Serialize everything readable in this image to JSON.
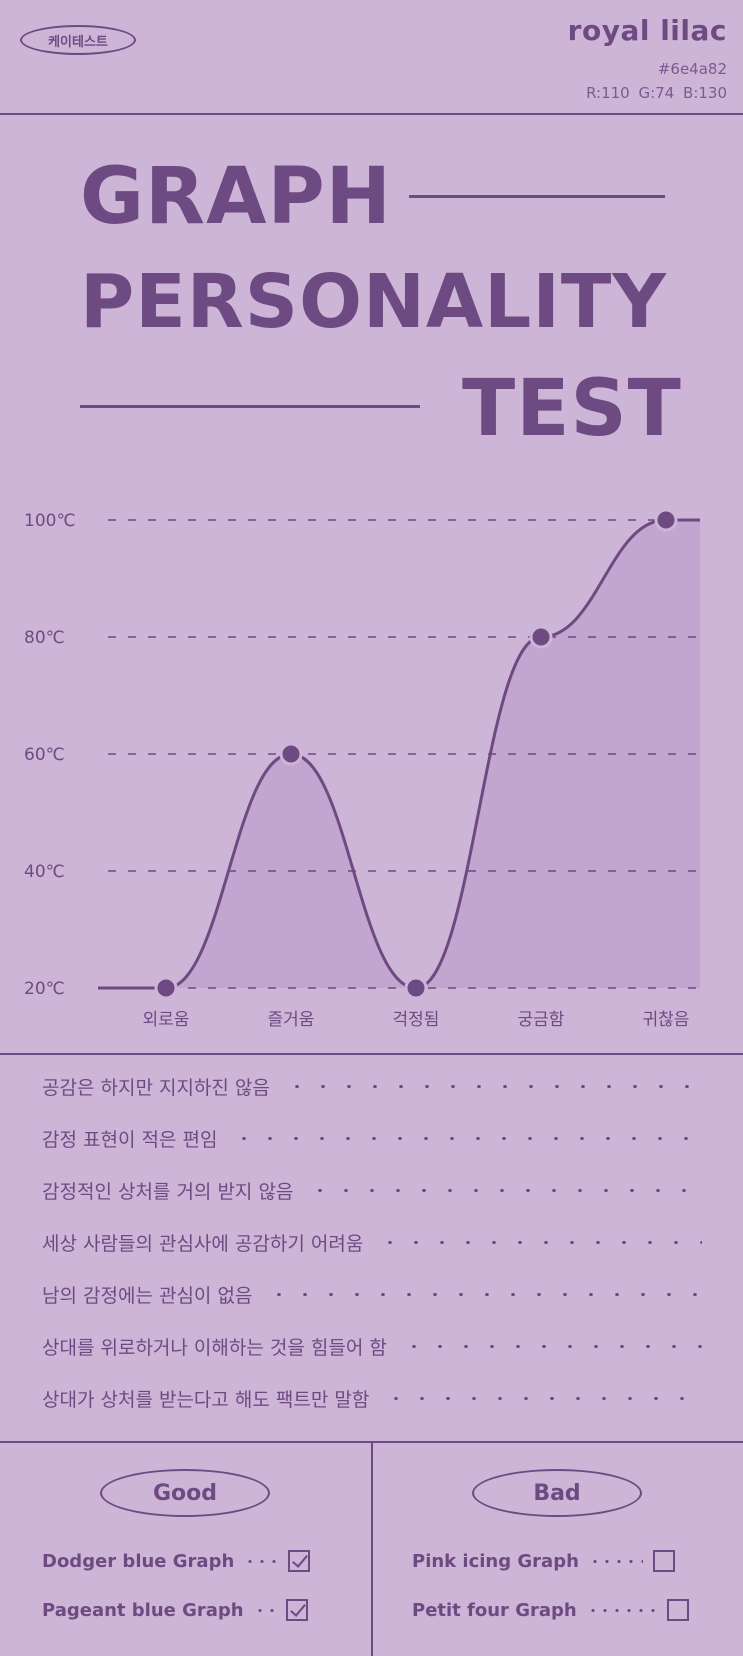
{
  "header": {
    "brand": "케이테스트",
    "color_name": "royal lilac",
    "color_hex": "#6e4a82",
    "color_rgb": "R:110  G:74  B:130"
  },
  "title": {
    "line1": "GRAPH",
    "line2": "PERSONALITY",
    "line3": "TEST"
  },
  "colors": {
    "primary": "#6e4a82",
    "background": "#cdb5d7",
    "fill": "#c3a6cf"
  },
  "chart_data": {
    "type": "area",
    "categories": [
      "외로움",
      "즐거움",
      "걱정됨",
      "궁금함",
      "귀찮음"
    ],
    "values": [
      20,
      60,
      20,
      80,
      100
    ],
    "y_ticks": [
      "20℃",
      "40℃",
      "60℃",
      "80℃",
      "100℃"
    ],
    "ylim": [
      20,
      100
    ],
    "grid": true,
    "curve": "smooth"
  },
  "traits": [
    "공감은 하지만 지지하진 않음",
    "감정 표현이 적은 편임",
    "감정적인 상처를 거의 받지 않음",
    "세상 사람들의 관심사에 공감하기 어려움",
    "남의 감정에는 관심이 없음",
    "상대를 위로하거나 이해하는 것을 힘들어 함",
    "상대가 상처를 받는다고 해도 팩트만 말함"
  ],
  "good": {
    "label": "Good",
    "items": [
      {
        "name": "Dodger blue Graph",
        "checked": true
      },
      {
        "name": "Pageant blue Graph",
        "checked": true
      }
    ]
  },
  "bad": {
    "label": "Bad",
    "items": [
      {
        "name": "Pink icing Graph",
        "checked": false
      },
      {
        "name": "Petit four Graph",
        "checked": false
      }
    ]
  }
}
